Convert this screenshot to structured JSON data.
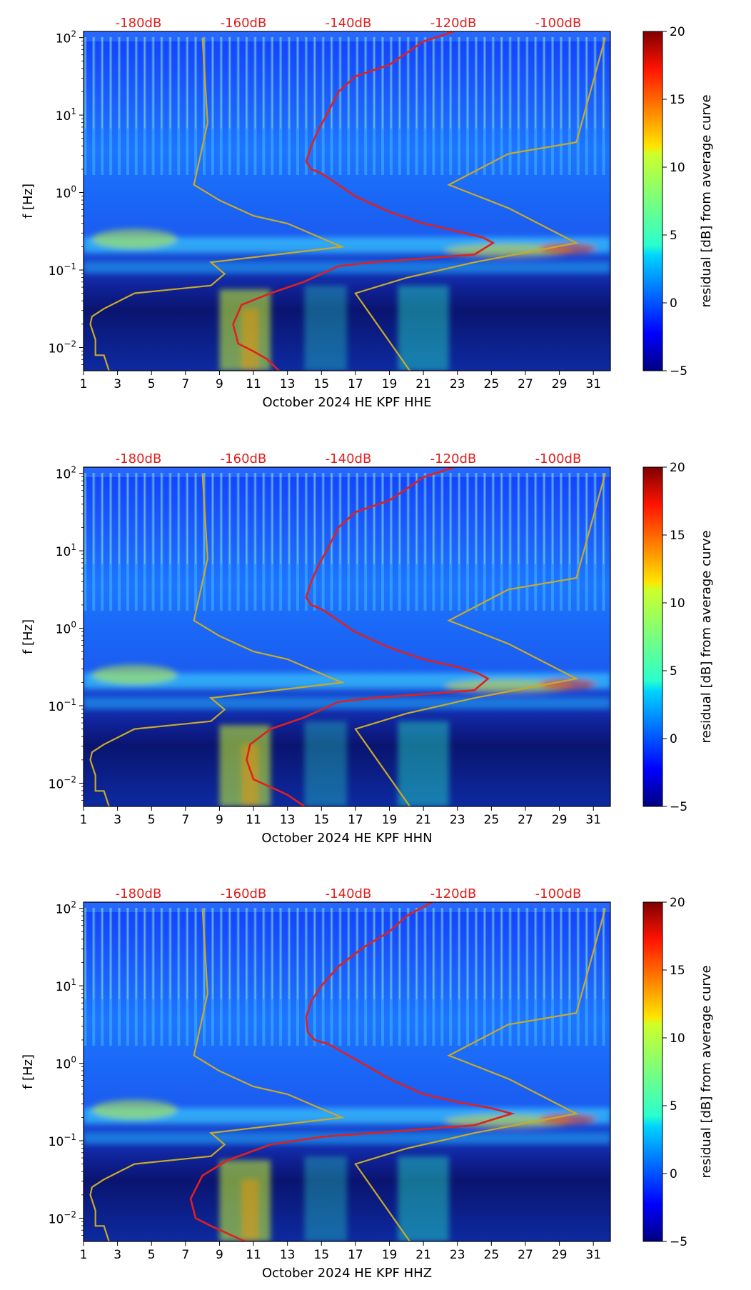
{
  "chart_data": [
    {
      "type": "heatmap",
      "title": "",
      "xlabel": "October 2024 HE KPF  HHE",
      "ylabel": "f [Hz]",
      "x_ticks": [
        "1",
        "3",
        "5",
        "7",
        "9",
        "11",
        "13",
        "15",
        "17",
        "19",
        "21",
        "23",
        "25",
        "27",
        "29",
        "31"
      ],
      "y_ticks": [
        {
          "base": "10",
          "exp": "2"
        },
        {
          "base": "10",
          "exp": "1"
        },
        {
          "base": "10",
          "exp": "0"
        },
        {
          "base": "10",
          "exp": "−1"
        },
        {
          "base": "10",
          "exp": "−2"
        }
      ],
      "xlim": [
        1,
        32
      ],
      "ylim_log10": [
        -2.3,
        2.08
      ],
      "top_db_labels": [
        "-180dB",
        "-160dB",
        "-140dB",
        "-120dB",
        "-100dB"
      ],
      "colorbar": {
        "label": "residual [dB] from average curve",
        "ticks": [
          "20",
          "15",
          "10",
          "5",
          "0",
          "−5"
        ],
        "range": [
          -5,
          20
        ]
      },
      "series": [
        {
          "name": "average PSD curve",
          "color": "#e0201e",
          "points": [
            [
              22.8,
              2.08
            ],
            [
              21,
              1.95
            ],
            [
              20,
              1.8
            ],
            [
              19,
              1.65
            ],
            [
              17,
              1.5
            ],
            [
              16,
              1.3
            ],
            [
              15.3,
              1.0
            ],
            [
              14.8,
              0.8
            ],
            [
              14.4,
              0.6
            ],
            [
              14.1,
              0.4
            ],
            [
              14.4,
              0.3
            ],
            [
              15,
              0.25
            ],
            [
              16,
              0.1
            ],
            [
              17,
              -0.05
            ],
            [
              19,
              -0.25
            ],
            [
              21,
              -0.4
            ],
            [
              23,
              -0.5
            ],
            [
              24.5,
              -0.58
            ],
            [
              25.1,
              -0.65
            ],
            [
              24,
              -0.8
            ],
            [
              21,
              -0.85
            ],
            [
              18,
              -0.9
            ],
            [
              16,
              -0.95
            ],
            [
              14,
              -1.15
            ],
            [
              12,
              -1.3
            ],
            [
              10.3,
              -1.45
            ],
            [
              9.8,
              -1.7
            ],
            [
              10.1,
              -1.95
            ],
            [
              11,
              -2.05
            ],
            [
              11.8,
              -2.15
            ],
            [
              12.5,
              -2.3
            ]
          ]
        },
        {
          "name": "low noise model",
          "color": "#c8aa28",
          "points": [
            [
              8,
              2.0
            ],
            [
              8.3,
              0.9
            ],
            [
              7.5,
              0.1
            ],
            [
              9,
              -0.1
            ],
            [
              11,
              -0.3
            ],
            [
              13,
              -0.4
            ],
            [
              16.2,
              -0.7
            ],
            [
              8.5,
              -0.9
            ],
            [
              9.3,
              -1.05
            ],
            [
              8.5,
              -1.2
            ],
            [
              4,
              -1.3
            ],
            [
              2.2,
              -1.5
            ],
            [
              1.5,
              -1.6
            ],
            [
              1.4,
              -1.7
            ],
            [
              1.7,
              -1.9
            ],
            [
              1.7,
              -2.1
            ],
            [
              2.2,
              -2.1
            ],
            [
              2.5,
              -2.3
            ]
          ]
        },
        {
          "name": "high noise model",
          "color": "#c8aa28",
          "points": [
            [
              31.7,
              2.0
            ],
            [
              30,
              0.65
            ],
            [
              26,
              0.5
            ],
            [
              22.5,
              0.1
            ],
            [
              26,
              -0.2
            ],
            [
              30,
              -0.65
            ],
            [
              24,
              -0.9
            ],
            [
              20,
              -1.1
            ],
            [
              17,
              -1.3
            ],
            [
              20.2,
              -2.3
            ]
          ]
        }
      ]
    },
    {
      "type": "heatmap",
      "title": "",
      "xlabel": "October 2024 HE KPF  HHN",
      "ylabel": "f [Hz]",
      "x_ticks": [
        "1",
        "3",
        "5",
        "7",
        "9",
        "11",
        "13",
        "15",
        "17",
        "19",
        "21",
        "23",
        "25",
        "27",
        "29",
        "31"
      ],
      "y_ticks": [
        {
          "base": "10",
          "exp": "2"
        },
        {
          "base": "10",
          "exp": "1"
        },
        {
          "base": "10",
          "exp": "0"
        },
        {
          "base": "10",
          "exp": "−1"
        },
        {
          "base": "10",
          "exp": "−2"
        }
      ],
      "xlim": [
        1,
        32
      ],
      "ylim_log10": [
        -2.3,
        2.08
      ],
      "top_db_labels": [
        "-180dB",
        "-160dB",
        "-140dB",
        "-120dB",
        "-100dB"
      ],
      "colorbar": {
        "label": "residual [dB] from average curve",
        "ticks": [
          "20",
          "15",
          "10",
          "5",
          "0",
          "−5"
        ],
        "range": [
          -5,
          20
        ]
      },
      "series": [
        {
          "name": "average PSD curve",
          "color": "#e0201e",
          "points": [
            [
              22.8,
              2.08
            ],
            [
              21,
              1.95
            ],
            [
              20,
              1.8
            ],
            [
              19,
              1.65
            ],
            [
              17,
              1.5
            ],
            [
              16,
              1.3
            ],
            [
              15.3,
              1.0
            ],
            [
              14.8,
              0.8
            ],
            [
              14.4,
              0.6
            ],
            [
              14.1,
              0.4
            ],
            [
              14.4,
              0.3
            ],
            [
              15,
              0.25
            ],
            [
              16,
              0.1
            ],
            [
              17,
              -0.05
            ],
            [
              19,
              -0.25
            ],
            [
              21,
              -0.4
            ],
            [
              23,
              -0.5
            ],
            [
              24.2,
              -0.58
            ],
            [
              24.8,
              -0.65
            ],
            [
              24,
              -0.8
            ],
            [
              21,
              -0.85
            ],
            [
              18,
              -0.9
            ],
            [
              16,
              -0.95
            ],
            [
              14,
              -1.15
            ],
            [
              12,
              -1.3
            ],
            [
              10.8,
              -1.5
            ],
            [
              10.6,
              -1.7
            ],
            [
              11,
              -1.95
            ],
            [
              12,
              -2.05
            ],
            [
              13,
              -2.15
            ],
            [
              14,
              -2.3
            ]
          ]
        },
        {
          "name": "low noise model",
          "color": "#c8aa28",
          "points": [
            [
              8,
              2.0
            ],
            [
              8.3,
              0.9
            ],
            [
              7.5,
              0.1
            ],
            [
              9,
              -0.1
            ],
            [
              11,
              -0.3
            ],
            [
              13,
              -0.4
            ],
            [
              16.2,
              -0.7
            ],
            [
              8.5,
              -0.9
            ],
            [
              9.3,
              -1.05
            ],
            [
              8.5,
              -1.2
            ],
            [
              4,
              -1.3
            ],
            [
              2.2,
              -1.5
            ],
            [
              1.5,
              -1.6
            ],
            [
              1.4,
              -1.7
            ],
            [
              1.7,
              -1.9
            ],
            [
              1.7,
              -2.1
            ],
            [
              2.2,
              -2.1
            ],
            [
              2.5,
              -2.3
            ]
          ]
        },
        {
          "name": "high noise model",
          "color": "#c8aa28",
          "points": [
            [
              31.7,
              2.0
            ],
            [
              30,
              0.65
            ],
            [
              26,
              0.5
            ],
            [
              22.5,
              0.1
            ],
            [
              26,
              -0.2
            ],
            [
              30,
              -0.65
            ],
            [
              24,
              -0.9
            ],
            [
              20,
              -1.1
            ],
            [
              17,
              -1.3
            ],
            [
              20.2,
              -2.3
            ]
          ]
        }
      ]
    },
    {
      "type": "heatmap",
      "title": "",
      "xlabel": "October 2024 HE KPF  HHZ",
      "ylabel": "f [Hz]",
      "x_ticks": [
        "1",
        "3",
        "5",
        "7",
        "9",
        "11",
        "13",
        "15",
        "17",
        "19",
        "21",
        "23",
        "25",
        "27",
        "29",
        "31"
      ],
      "y_ticks": [
        {
          "base": "10",
          "exp": "2"
        },
        {
          "base": "10",
          "exp": "1"
        },
        {
          "base": "10",
          "exp": "0"
        },
        {
          "base": "10",
          "exp": "−1"
        },
        {
          "base": "10",
          "exp": "−2"
        }
      ],
      "xlim": [
        1,
        32
      ],
      "ylim_log10": [
        -2.3,
        2.08
      ],
      "top_db_labels": [
        "-180dB",
        "-160dB",
        "-140dB",
        "-120dB",
        "-100dB"
      ],
      "colorbar": {
        "label": "residual [dB] from average curve",
        "ticks": [
          "20",
          "15",
          "10",
          "5",
          "0",
          "−5"
        ],
        "range": [
          -5,
          20
        ]
      },
      "series": [
        {
          "name": "average PSD curve",
          "color": "#e0201e",
          "points": [
            [
              21.5,
              2.08
            ],
            [
              20,
              1.9
            ],
            [
              19,
              1.7
            ],
            [
              17.5,
              1.5
            ],
            [
              16,
              1.25
            ],
            [
              15,
              1.0
            ],
            [
              14.4,
              0.8
            ],
            [
              14.1,
              0.6
            ],
            [
              14.2,
              0.4
            ],
            [
              14.6,
              0.3
            ],
            [
              15.4,
              0.25
            ],
            [
              17,
              0.05
            ],
            [
              19,
              -0.2
            ],
            [
              21,
              -0.4
            ],
            [
              23,
              -0.5
            ],
            [
              25,
              -0.58
            ],
            [
              26.2,
              -0.65
            ],
            [
              24,
              -0.8
            ],
            [
              21,
              -0.85
            ],
            [
              18,
              -0.9
            ],
            [
              15,
              -0.95
            ],
            [
              12,
              -1.05
            ],
            [
              9.5,
              -1.25
            ],
            [
              8,
              -1.45
            ],
            [
              7.3,
              -1.75
            ],
            [
              7.6,
              -2.0
            ],
            [
              8.5,
              -2.1
            ],
            [
              9.5,
              -2.2
            ],
            [
              10.5,
              -2.3
            ]
          ]
        },
        {
          "name": "low noise model",
          "color": "#c8aa28",
          "points": [
            [
              8,
              2.0
            ],
            [
              8.3,
              0.9
            ],
            [
              7.5,
              0.1
            ],
            [
              9,
              -0.1
            ],
            [
              11,
              -0.3
            ],
            [
              13,
              -0.4
            ],
            [
              16.2,
              -0.7
            ],
            [
              8.5,
              -0.9
            ],
            [
              9.3,
              -1.05
            ],
            [
              8.5,
              -1.2
            ],
            [
              4,
              -1.3
            ],
            [
              2.2,
              -1.5
            ],
            [
              1.5,
              -1.6
            ],
            [
              1.4,
              -1.7
            ],
            [
              1.7,
              -1.9
            ],
            [
              1.7,
              -2.1
            ],
            [
              2.2,
              -2.1
            ],
            [
              2.5,
              -2.3
            ]
          ]
        },
        {
          "name": "high noise model",
          "color": "#c8aa28",
          "points": [
            [
              31.7,
              2.0
            ],
            [
              30,
              0.65
            ],
            [
              26,
              0.5
            ],
            [
              22.5,
              0.1
            ],
            [
              26,
              -0.2
            ],
            [
              30,
              -0.65
            ],
            [
              24,
              -0.9
            ],
            [
              20,
              -1.1
            ],
            [
              17,
              -1.3
            ],
            [
              20.2,
              -2.3
            ]
          ]
        }
      ]
    }
  ]
}
